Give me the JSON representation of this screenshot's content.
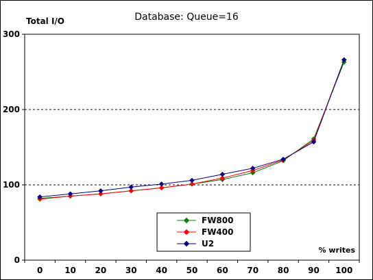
{
  "chart_data": {
    "type": "line",
    "title": "Database: Queue=16",
    "ylabel": "Total I/O",
    "xlabel": "% writes",
    "x": [
      0,
      10,
      20,
      30,
      40,
      50,
      60,
      70,
      80,
      90,
      100
    ],
    "xlim": [
      0,
      100
    ],
    "ylim": [
      0,
      300
    ],
    "yticks": [
      0,
      100,
      200,
      300
    ],
    "grid": "horizontal dashed at 100 and 200",
    "legend_position": "bottom-center",
    "series": [
      {
        "name": "FW800",
        "color": "#008000",
        "values": [
          82,
          85,
          88,
          92,
          96,
          101,
          107,
          116,
          132,
          161,
          263
        ]
      },
      {
        "name": "FW400",
        "color": "#ff0000",
        "values": [
          81,
          85,
          88,
          92,
          96,
          101,
          109,
          119,
          133,
          159,
          266
        ]
      },
      {
        "name": "U2",
        "color": "#000080",
        "values": [
          84,
          88,
          92,
          97,
          101,
          106,
          114,
          122,
          134,
          157,
          266
        ]
      }
    ]
  }
}
